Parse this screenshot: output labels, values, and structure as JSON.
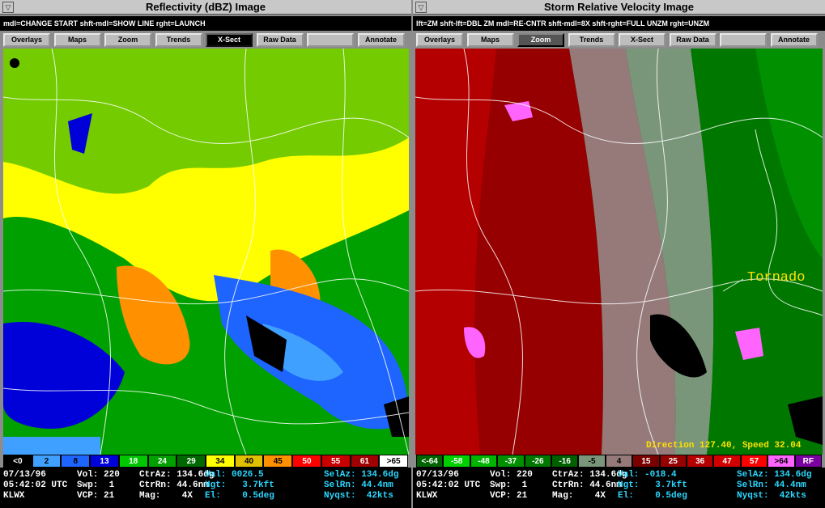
{
  "panels": [
    {
      "title": "Reflectivity (dBZ) Image",
      "hint": "mdl=CHANGE START shft-mdl=SHOW LINE rght=LAUNCH",
      "buttons": [
        "Overlays",
        "Maps",
        "Zoom",
        "Trends",
        "X-Sect",
        "Raw Data",
        "Annotate"
      ],
      "legend": [
        {
          "label": "<0",
          "color": "#000000"
        },
        {
          "label": "2",
          "color": "#40a0ff"
        },
        {
          "label": "8",
          "color": "#1e64ff"
        },
        {
          "label": "13",
          "color": "#0000d8"
        },
        {
          "label": "18",
          "color": "#00c800"
        },
        {
          "label": "24",
          "color": "#00a000"
        },
        {
          "label": "29",
          "color": "#006800"
        },
        {
          "label": "34",
          "color": "#ffff00"
        },
        {
          "label": "40",
          "color": "#e0c000"
        },
        {
          "label": "45",
          "color": "#ff9000"
        },
        {
          "label": "50",
          "color": "#ff0000"
        },
        {
          "label": "55",
          "color": "#c80000"
        },
        {
          "label": "61",
          "color": "#a00000"
        },
        {
          "label": ">65",
          "color": "#ffffff"
        }
      ],
      "status": [
        [
          "07/13/96",
          "Vol: 220",
          "CtrAz: 134.6dg",
          "Val: 0026.5",
          "SelAz: 134.6dg"
        ],
        [
          "05:42:02 UTC",
          "Swp:  1",
          "CtrRn: 44.6nm",
          "Hgt:   3.7kft",
          "SelRn: 44.4nm"
        ],
        [
          "KLWX",
          "VCP: 21",
          "Mag:    4X",
          "El:    0.5deg",
          "Nyqst:  42kts"
        ]
      ],
      "annotations": []
    },
    {
      "title": "Storm Relative Velocity Image",
      "hint": "lft=ZM shft-lft=DBL ZM mdl=RE-CNTR shft-mdl=8X shft-rght=FULL UNZM rght=UNZM",
      "buttons": [
        "Overlays",
        "Maps",
        "Zoom",
        "Trends",
        "X-Sect",
        "Raw Data",
        "Annotate"
      ],
      "legend": [
        {
          "label": "<-64",
          "color": "#006400"
        },
        {
          "label": "-58",
          "color": "#00d000"
        },
        {
          "label": "-48",
          "color": "#00b400"
        },
        {
          "label": "-37",
          "color": "#009000"
        },
        {
          "label": "-26",
          "color": "#007800"
        },
        {
          "label": "-16",
          "color": "#006000"
        },
        {
          "label": "-5",
          "color": "#7a967a"
        },
        {
          "label": "4",
          "color": "#967a7a"
        },
        {
          "label": "15",
          "color": "#7a0000"
        },
        {
          "label": "25",
          "color": "#960000"
        },
        {
          "label": "36",
          "color": "#b40000"
        },
        {
          "label": "47",
          "color": "#d20000"
        },
        {
          "label": "57",
          "color": "#ff0000"
        },
        {
          "label": ">64",
          "color": "#ff64ff"
        },
        {
          "label": "RF",
          "color": "#7a00a0"
        }
      ],
      "status": [
        [
          "07/13/96",
          "Vol: 220",
          "CtrAz: 134.6dg",
          "Val: -018.4",
          "SelAz: 134.6dg"
        ],
        [
          "05:42:02 UTC",
          "Swp:  1",
          "CtrRn: 44.6nm",
          "Hgt:   3.7kft",
          "SelRn: 44.4nm"
        ],
        [
          "KLWX",
          "VCP: 21",
          "Mag:    4X",
          "El:    0.5deg",
          "Nyqst:  42kts"
        ]
      ],
      "annotations": [
        "Tornado",
        "Direction 127.40, Speed 32.04"
      ]
    }
  ]
}
